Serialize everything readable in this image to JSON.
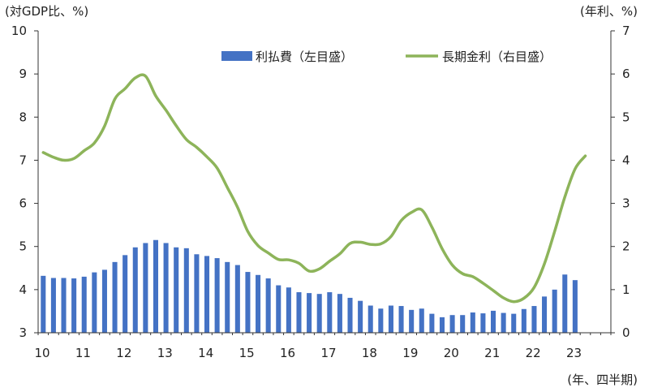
{
  "chart_data": {
    "type": "bar+line",
    "left_axis_label": "(対GDP比、%)",
    "right_axis_label": "(年利、%)",
    "x_axis_label": "(年、四半期)",
    "x_tick_labels": [
      "10",
      "11",
      "12",
      "13",
      "14",
      "15",
      "16",
      "17",
      "18",
      "19",
      "20",
      "21",
      "22",
      "23"
    ],
    "y_left": {
      "min": 3,
      "max": 10,
      "ticks": [
        3,
        4,
        5,
        6,
        7,
        8,
        9,
        10
      ]
    },
    "y_right": {
      "min": 0,
      "max": 7,
      "ticks": [
        0,
        1,
        2,
        3,
        4,
        5,
        6,
        7
      ]
    },
    "quarters_per_year": 4,
    "start_year": 2010,
    "num_quarters": 54,
    "series": [
      {
        "name": "利払費（左目盛）",
        "type": "bar",
        "axis": "left",
        "color": "#4472C4",
        "values": [
          4.32,
          4.27,
          4.27,
          4.26,
          4.3,
          4.4,
          4.46,
          4.64,
          4.8,
          4.98,
          5.08,
          5.15,
          5.08,
          4.98,
          4.96,
          4.82,
          4.78,
          4.73,
          4.64,
          4.57,
          4.41,
          4.34,
          4.26,
          4.1,
          4.05,
          3.94,
          3.92,
          3.9,
          3.94,
          3.9,
          3.81,
          3.74,
          3.63,
          3.56,
          3.63,
          3.62,
          3.53,
          3.56,
          3.44,
          3.36,
          3.41,
          3.41,
          3.47,
          3.45,
          3.51,
          3.46,
          3.44,
          3.55,
          3.62,
          3.84,
          4.0,
          4.35,
          4.22,
          null
        ]
      },
      {
        "name": "長期金利（右目盛）",
        "type": "line",
        "axis": "right",
        "color": "#8DB45A",
        "values": [
          4.18,
          4.07,
          4.0,
          4.04,
          4.22,
          4.4,
          4.79,
          5.42,
          5.66,
          5.91,
          5.95,
          5.49,
          5.16,
          4.8,
          4.48,
          4.3,
          4.08,
          3.82,
          3.37,
          2.91,
          2.35,
          2.02,
          1.85,
          1.7,
          1.69,
          1.61,
          1.43,
          1.48,
          1.66,
          1.83,
          2.07,
          2.1,
          2.05,
          2.06,
          2.23,
          2.6,
          2.79,
          2.85,
          2.45,
          1.95,
          1.57,
          1.37,
          1.3,
          1.15,
          0.98,
          0.81,
          0.72,
          0.8,
          1.05,
          1.6,
          2.35,
          3.15,
          3.8,
          4.1
        ]
      }
    ]
  }
}
